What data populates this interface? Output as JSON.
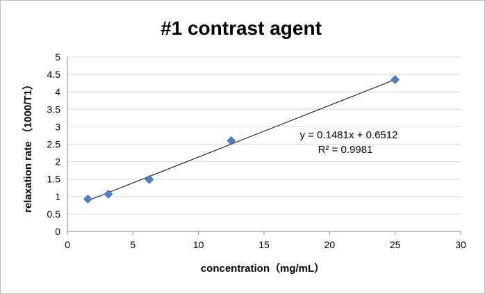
{
  "chart_data": {
    "type": "scatter",
    "title": "#1 contrast agent",
    "xlabel": "concentration（mg/mL）",
    "ylabel": "relaxation rate （1000/T1）",
    "xlim": [
      0,
      30
    ],
    "ylim": [
      0,
      5
    ],
    "x_ticks": [
      0,
      5,
      10,
      15,
      20,
      25,
      30
    ],
    "y_ticks": [
      "0",
      "0.5",
      "1",
      "1.5",
      "2",
      "2.5",
      "3",
      "3.5",
      "4",
      "4.5",
      "5"
    ],
    "grid": true,
    "marker": "diamond",
    "marker_color": "#4f81bd",
    "series": [
      {
        "x": [
          1.5625,
          3.125,
          6.25,
          12.5,
          25
        ],
        "y": [
          0.93,
          1.07,
          1.49,
          2.6,
          4.35
        ]
      }
    ],
    "trendline": {
      "type": "linear",
      "slope": 0.1481,
      "intercept": 0.6512,
      "equation": "y = 0.1481x + 0.6512",
      "r2_label": "R² = 0.9981"
    }
  }
}
